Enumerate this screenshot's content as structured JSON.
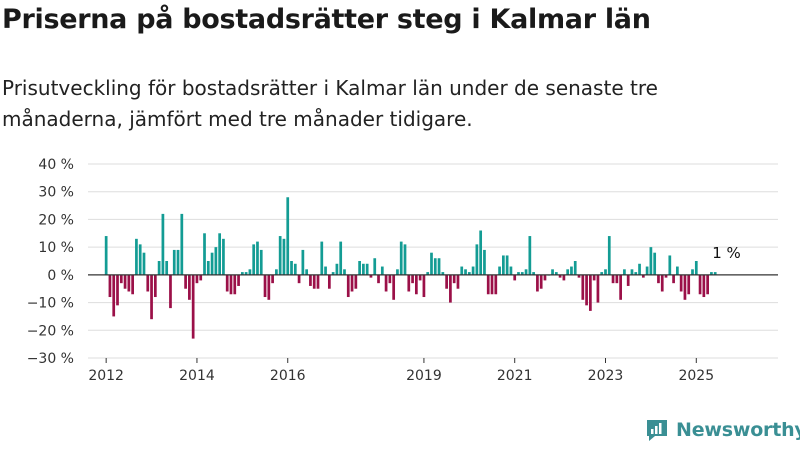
{
  "title": "Priserna på bostadsrätter steg i Kalmar län",
  "subtitle": "Prisutveckling för bostadsrätter i Kalmar län under de senaste tre månaderna, jämfört med tre månader tidigare.",
  "brand": {
    "name": "Newsworthy",
    "color": "#3a8f94"
  },
  "colors": {
    "positive": "#139c94",
    "negative": "#9b1048",
    "grid": "#dddddd",
    "zero_line": "#333333"
  },
  "chart_data": {
    "type": "bar",
    "title": "Priserna på bostadsrätter steg i Kalmar län",
    "ylim": [
      -30,
      40
    ],
    "yticks": [
      -30,
      -20,
      -10,
      0,
      10,
      20,
      30,
      40
    ],
    "ytick_labels": [
      "−30 %",
      "−20 %",
      "−10 %",
      "0 %",
      "10 %",
      "20 %",
      "30 %",
      "40 %"
    ],
    "xlim": [
      2011.6,
      2026.8
    ],
    "xticks": [
      2012,
      2014,
      2016,
      2019,
      2021,
      2023,
      2025
    ],
    "xtick_labels": [
      "2012",
      "2014",
      "2016",
      "2019",
      "2021",
      "2023",
      "2025"
    ],
    "grid": true,
    "series": [
      {
        "start": "2012-01",
        "frequency": "monthly",
        "values": [
          14,
          -8,
          -15,
          -11,
          -3,
          -5,
          -6,
          -7,
          13,
          11,
          8,
          -6,
          -16,
          -8,
          5,
          22,
          5,
          -12,
          9,
          9,
          22,
          -5,
          -9,
          -23,
          -3,
          -2,
          15,
          5,
          8,
          10,
          15,
          13,
          -6,
          -7,
          -7,
          -4,
          1,
          1,
          2,
          11,
          12,
          9,
          -8,
          -9,
          -3,
          2,
          14,
          13,
          28,
          5,
          4,
          -3,
          9,
          2,
          -4,
          -5,
          -5,
          12,
          3,
          -5,
          1,
          4,
          12,
          2,
          -8,
          -6,
          -5,
          5,
          4,
          4,
          -1,
          6,
          -3,
          3,
          -6,
          -3,
          -9,
          2,
          12,
          11,
          -6,
          -3,
          -7,
          -2,
          -8,
          1,
          8,
          6,
          6,
          1,
          -5,
          -10,
          -3,
          -5,
          3,
          2,
          1,
          3,
          11,
          16,
          9,
          -7,
          -7,
          -7,
          3,
          7,
          7,
          3,
          -2,
          1,
          1,
          2,
          14,
          1,
          -6,
          -5,
          -2,
          0,
          2,
          1,
          -1,
          -2,
          2,
          3,
          5,
          -1,
          -9,
          -11,
          -13,
          -2,
          -10,
          1,
          2,
          14,
          -3,
          -3,
          -9,
          2,
          -4,
          2,
          1,
          4,
          -1,
          3,
          10,
          8,
          -3,
          -6,
          -1,
          7,
          -3,
          3,
          -6,
          -9,
          -7,
          2,
          5,
          -7,
          -8,
          -7,
          1,
          1
        ]
      }
    ],
    "annotation": {
      "text": "1 %",
      "x": "2025-09",
      "y": 1
    }
  }
}
